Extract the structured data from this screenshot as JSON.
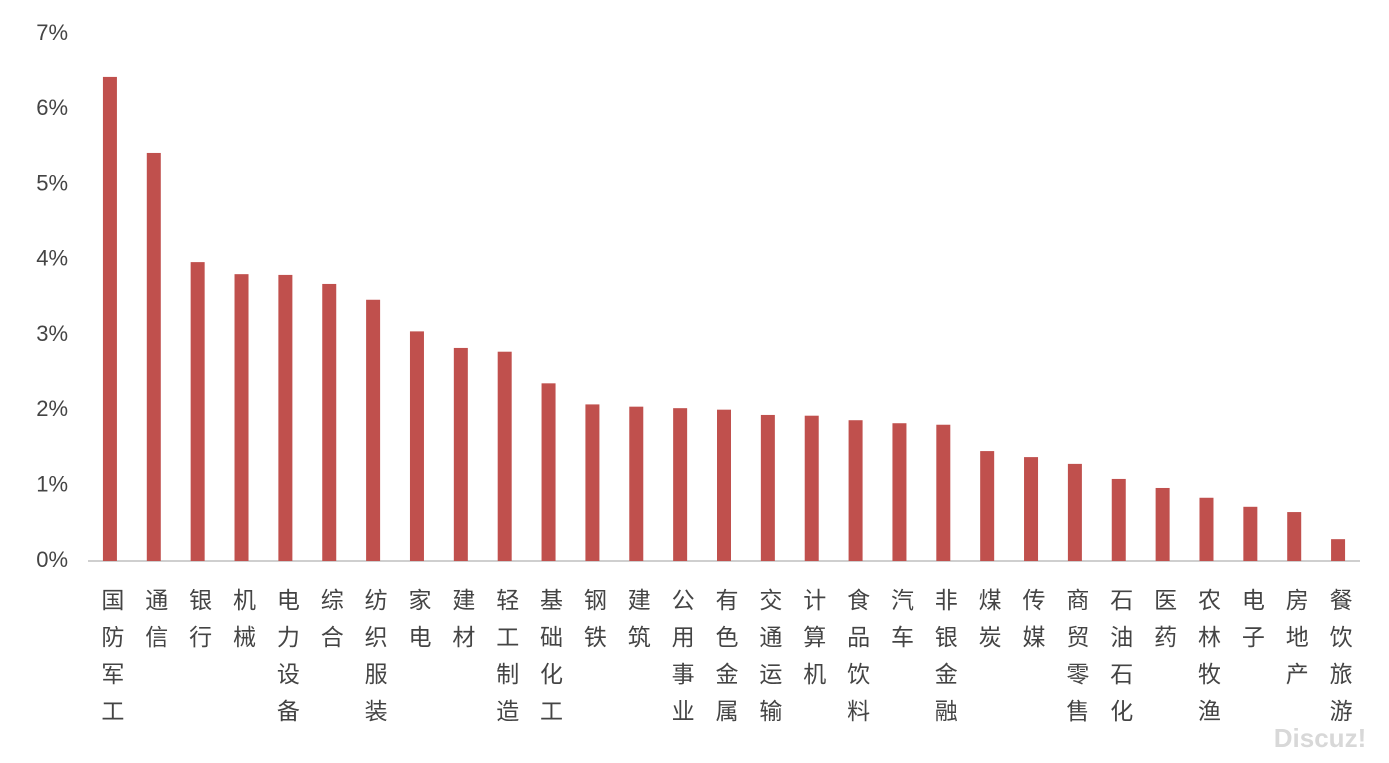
{
  "chart_data": {
    "type": "bar",
    "categories": [
      "国防军工",
      "通信",
      "银行",
      "机械",
      "电力设备",
      "综合",
      "纺织服装",
      "家电",
      "建材",
      "轻工制造",
      "基础化工",
      "钢铁",
      "建筑",
      "公用事业",
      "有色金属",
      "交通运输",
      "计算机",
      "食品饮料",
      "汽车",
      "非银金融",
      "煤炭",
      "传媒",
      "商贸零售",
      "石油石化",
      "医药",
      "农林牧渔",
      "电子",
      "房地产",
      "餐饮旅游"
    ],
    "values": [
      6.43,
      5.42,
      3.97,
      3.81,
      3.8,
      3.68,
      3.47,
      3.05,
      2.83,
      2.78,
      2.36,
      2.08,
      2.05,
      2.03,
      2.01,
      1.94,
      1.93,
      1.87,
      1.83,
      1.81,
      1.46,
      1.38,
      1.29,
      1.09,
      0.97,
      0.84,
      0.72,
      0.65,
      0.29
    ],
    "color": "#c0504d",
    "ylim": [
      0,
      7
    ],
    "yticks": [
      {
        "value": 0,
        "label": "0%"
      },
      {
        "value": 1,
        "label": "1%"
      },
      {
        "value": 2,
        "label": "2%"
      },
      {
        "value": 3,
        "label": "3%"
      },
      {
        "value": 4,
        "label": "4%"
      },
      {
        "value": 5,
        "label": "5%"
      },
      {
        "value": 6,
        "label": "6%"
      },
      {
        "value": 7,
        "label": "7%"
      }
    ],
    "grid": false,
    "watermark": "Discuz!"
  }
}
